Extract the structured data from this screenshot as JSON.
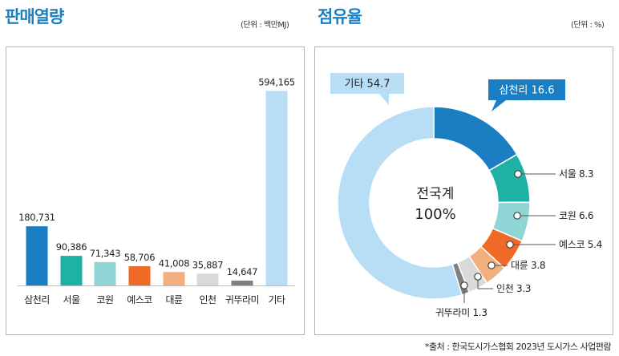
{
  "sales": {
    "title": "판매열량",
    "unit": "(단위 : 백만MJ)"
  },
  "share": {
    "title": "점유율",
    "unit": "(단위 : %)",
    "center_label": "전국계",
    "center_value": "100%"
  },
  "source": "*출처 : 한국도시가스협회 2023년 도시가스 사업편람",
  "chart_data": [
    {
      "type": "bar",
      "title": "판매열량",
      "unit": "(단위 : 백만MJ)",
      "categories": [
        "삼천리",
        "서울",
        "코원",
        "예스코",
        "대륜",
        "인천",
        "귀뚜라미",
        "기타"
      ],
      "values": [
        180731,
        90386,
        71343,
        58706,
        41008,
        35887,
        14647,
        594165
      ],
      "value_labels": [
        "180,731",
        "90,386",
        "71,343",
        "58,706",
        "41,008",
        "35,887",
        "14,647",
        "594,165"
      ],
      "colors": [
        "#1b7ec2",
        "#1eb1a6",
        "#8fd5d5",
        "#ee6a26",
        "#f3b07e",
        "#d9d9d9",
        "#7f7f7f",
        "#b7def5"
      ],
      "ylim": [
        0,
        600000
      ],
      "grid": false
    },
    {
      "type": "pie",
      "title": "점유율",
      "unit": "(단위 : %)",
      "donut": true,
      "center_text": [
        "전국계",
        "100%"
      ],
      "slices": [
        {
          "label": "삼천리",
          "value": 16.6,
          "color": "#1b7ec2"
        },
        {
          "label": "서울",
          "value": 8.3,
          "color": "#1eb1a6"
        },
        {
          "label": "코원",
          "value": 6.6,
          "color": "#8fd5d5"
        },
        {
          "label": "예스코",
          "value": 5.4,
          "color": "#ee6a26"
        },
        {
          "label": "대륜",
          "value": 3.8,
          "color": "#f3b07e"
        },
        {
          "label": "인천",
          "value": 3.3,
          "color": "#d9d9d9"
        },
        {
          "label": "귀뚜라미",
          "value": 1.3,
          "color": "#7f7f7f"
        },
        {
          "label": "기타",
          "value": 54.7,
          "color": "#b7def5"
        }
      ],
      "start_angle_deg": 0,
      "direction": "clockwise"
    }
  ]
}
